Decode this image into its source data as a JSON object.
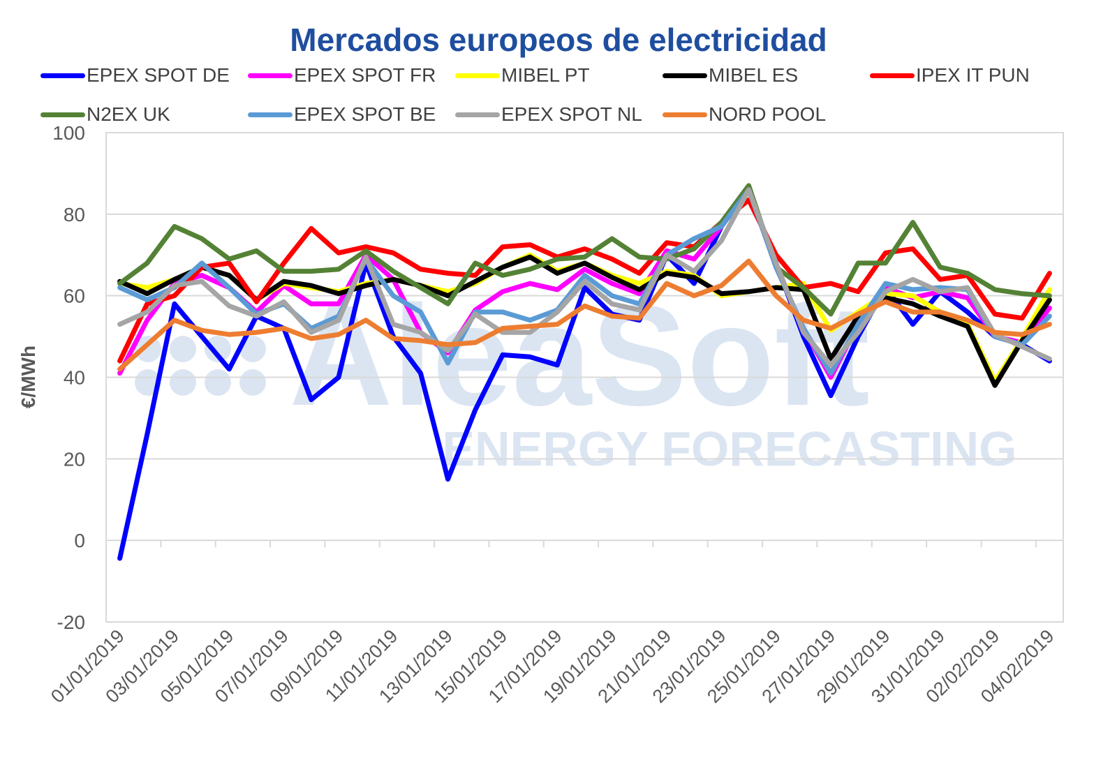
{
  "chart_data": {
    "type": "line",
    "title": "Mercados europeos de electricidad",
    "ylabel": "€/MWh",
    "xlabel": "",
    "ylim": [
      -20,
      100
    ],
    "yticks": [
      -20,
      0,
      20,
      40,
      60,
      80,
      100
    ],
    "grid": true,
    "legend_position": "top",
    "watermark": {
      "brand": "AleaSoft",
      "tagline": "ENERGY FORECASTING",
      "color": "#dbe5f2"
    },
    "x": [
      "01/01/2019",
      "02/01/2019",
      "03/01/2019",
      "04/01/2019",
      "05/01/2019",
      "06/01/2019",
      "07/01/2019",
      "08/01/2019",
      "09/01/2019",
      "10/01/2019",
      "11/01/2019",
      "12/01/2019",
      "13/01/2019",
      "14/01/2019",
      "15/01/2019",
      "16/01/2019",
      "17/01/2019",
      "18/01/2019",
      "19/01/2019",
      "20/01/2019",
      "21/01/2019",
      "22/01/2019",
      "23/01/2019",
      "24/01/2019",
      "25/01/2019",
      "26/01/2019",
      "27/01/2019",
      "28/01/2019",
      "29/01/2019",
      "30/01/2019",
      "31/01/2019",
      "01/02/2019",
      "02/02/2019",
      "03/02/2019",
      "04/02/2019"
    ],
    "xtick_labels": [
      "01/01/2019",
      "03/01/2019",
      "05/01/2019",
      "07/01/2019",
      "09/01/2019",
      "11/01/2019",
      "13/01/2019",
      "15/01/2019",
      "17/01/2019",
      "19/01/2019",
      "21/01/2019",
      "23/01/2019",
      "25/01/2019",
      "27/01/2019",
      "29/01/2019",
      "31/01/2019",
      "02/02/2019",
      "04/02/2019"
    ],
    "series": [
      {
        "name": "EPEX SPOT DE",
        "color": "#0000ff",
        "values": [
          -4.4,
          26,
          58,
          50,
          42,
          55,
          52,
          34.5,
          40,
          68,
          50,
          41,
          15,
          32,
          45.5,
          45,
          43,
          62,
          55.5,
          54,
          70,
          63,
          77,
          86,
          68,
          50,
          35.5,
          50,
          62,
          53,
          61,
          56,
          50,
          48,
          44
        ]
      },
      {
        "name": "EPEX SPOT FR",
        "color": "#ff00ff",
        "values": [
          41,
          54,
          63,
          65,
          62,
          56,
          62.5,
          58,
          58,
          70,
          64,
          51,
          46,
          56.5,
          61,
          63,
          61.5,
          66.5,
          63,
          60.5,
          71,
          69,
          77,
          86,
          67,
          52,
          40,
          53,
          62,
          59.5,
          61,
          59.5,
          50,
          48.5,
          57
        ]
      },
      {
        "name": "MIBEL PT",
        "color": "#ffff00",
        "values": [
          63,
          62,
          64,
          67,
          65,
          59,
          63,
          62,
          61,
          63,
          64,
          62.5,
          61,
          63,
          67,
          70,
          66,
          68,
          65,
          63,
          66,
          65,
          60,
          61,
          62,
          63,
          51.5,
          56,
          60.5,
          60,
          56,
          53,
          39,
          49.5,
          61.5
        ]
      },
      {
        "name": "MIBEL ES",
        "color": "#000000",
        "values": [
          63.5,
          60.5,
          64,
          67,
          65,
          59,
          63.5,
          62.5,
          60.5,
          62.5,
          64,
          62.5,
          60,
          63.5,
          67,
          69.5,
          65.5,
          68,
          64.5,
          61.5,
          65.5,
          64.5,
          60.5,
          61,
          62,
          61.5,
          44.5,
          55,
          59.5,
          58,
          55,
          52.5,
          38,
          49,
          59
        ]
      },
      {
        "name": "IPEX IT PUN",
        "color": "#ff0000",
        "values": [
          44,
          58,
          60,
          67,
          68,
          58.5,
          68,
          76.5,
          70.5,
          72,
          70.5,
          66.5,
          65.5,
          65,
          72,
          72.5,
          69.5,
          71.5,
          69,
          65.5,
          73,
          72,
          78,
          83.5,
          70,
          62,
          63,
          61,
          70.5,
          71.5,
          64,
          65,
          55.5,
          54.5,
          65.5
        ]
      },
      {
        "name": "N2EX UK",
        "color": "#548235",
        "values": [
          63,
          68,
          77,
          74,
          69,
          71,
          66,
          66,
          66.5,
          71,
          66,
          62,
          58,
          68,
          65,
          66.5,
          69,
          69.5,
          74,
          69.5,
          69,
          71.5,
          78,
          87,
          67,
          62,
          55.5,
          68,
          68,
          78,
          67,
          65.5,
          61.5,
          60.5,
          60
        ]
      },
      {
        "name": "EPEX SPOT BE",
        "color": "#5b9bd5",
        "values": [
          62,
          59,
          62,
          68,
          62,
          55.5,
          58,
          52,
          55,
          69,
          60,
          56,
          43.5,
          56,
          56,
          54,
          56.5,
          65,
          60,
          58,
          70,
          74,
          77,
          86,
          67,
          52,
          41,
          53,
          63,
          61.5,
          62,
          61.5,
          50,
          48,
          55
        ]
      },
      {
        "name": "EPEX SPOT NL",
        "color": "#a5a5a5",
        "values": [
          53,
          56,
          62.5,
          63.5,
          57.5,
          55,
          58.5,
          51,
          54,
          69.5,
          53,
          51,
          46.5,
          55.5,
          51,
          51,
          56,
          63.5,
          58,
          56.5,
          70,
          66,
          73.5,
          86,
          68,
          51,
          43,
          51,
          61,
          64,
          61,
          62,
          50.5,
          47.5,
          44.5
        ]
      },
      {
        "name": "NORD POOL",
        "color": "#ed7d31",
        "values": [
          42,
          48,
          54,
          51.5,
          50.5,
          51,
          52,
          49.5,
          50.5,
          54,
          49.5,
          49,
          48,
          48.5,
          52,
          52.5,
          53,
          57.5,
          55,
          54.5,
          63,
          60,
          62.5,
          68.5,
          60,
          54,
          52,
          55.5,
          58.5,
          56,
          56,
          54,
          51,
          50.5,
          53
        ]
      }
    ]
  }
}
